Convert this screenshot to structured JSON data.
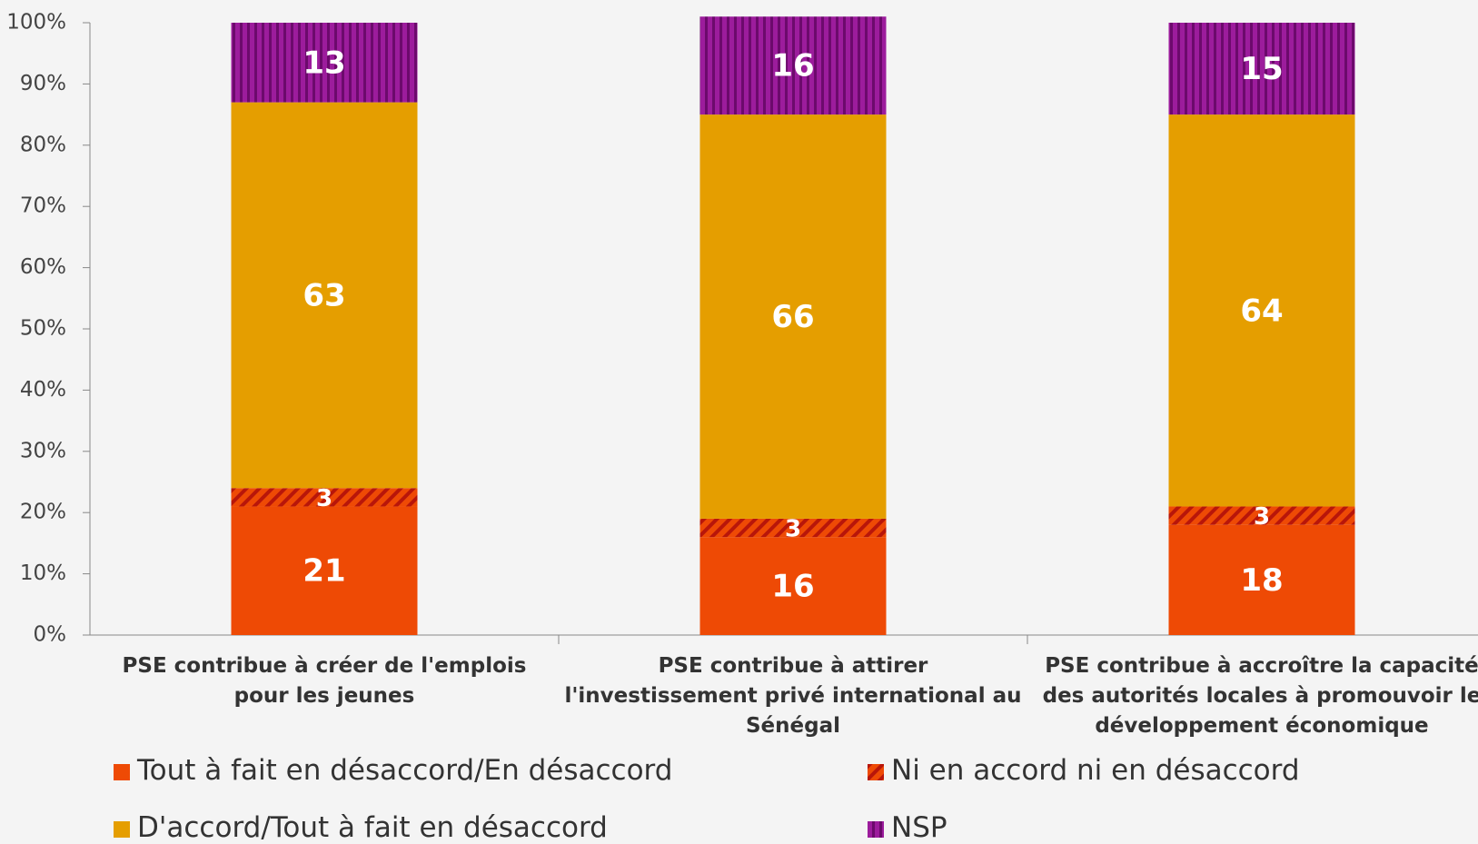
{
  "chart_data": {
    "type": "stacked_bar",
    "categories": [
      "PSE contribue à créer de l'emplois pour les jeunes",
      "PSE contribue à attirer l'investissement privé international au Sénégal",
      "PSE contribue à accroître la capacité des autorités locales à promouvoir le développement économique"
    ],
    "series": [
      {
        "name": "Tout à fait en désaccord/En désaccord",
        "color": "#ee4a05",
        "pattern": "solid",
        "values": [
          21,
          16,
          18
        ]
      },
      {
        "name": "Ni en accord ni en désaccord",
        "color": "#ee4a05",
        "pattern": "diagonal",
        "values": [
          3,
          3,
          3
        ]
      },
      {
        "name": "D'accord/Tout à fait en désaccord",
        "color": "#e59e00",
        "pattern": "solid",
        "values": [
          63,
          66,
          64
        ]
      },
      {
        "name": "NSP",
        "color": "#9c1c9c",
        "pattern": "vertical",
        "values": [
          13,
          16,
          15
        ]
      }
    ],
    "ylim": [
      0,
      100
    ],
    "yticks": [
      {
        "value": 0,
        "label": "0%"
      },
      {
        "value": 10,
        "label": "10%"
      },
      {
        "value": 20,
        "label": "20%"
      },
      {
        "value": 30,
        "label": "30%"
      },
      {
        "value": 40,
        "label": "40%"
      },
      {
        "value": 50,
        "label": "50%"
      },
      {
        "value": 60,
        "label": "60%"
      },
      {
        "value": 70,
        "label": "70%"
      },
      {
        "value": 80,
        "label": "80%"
      },
      {
        "value": 90,
        "label": "90%"
      },
      {
        "value": 100,
        "label": "100%"
      }
    ],
    "legend": "bottom"
  }
}
